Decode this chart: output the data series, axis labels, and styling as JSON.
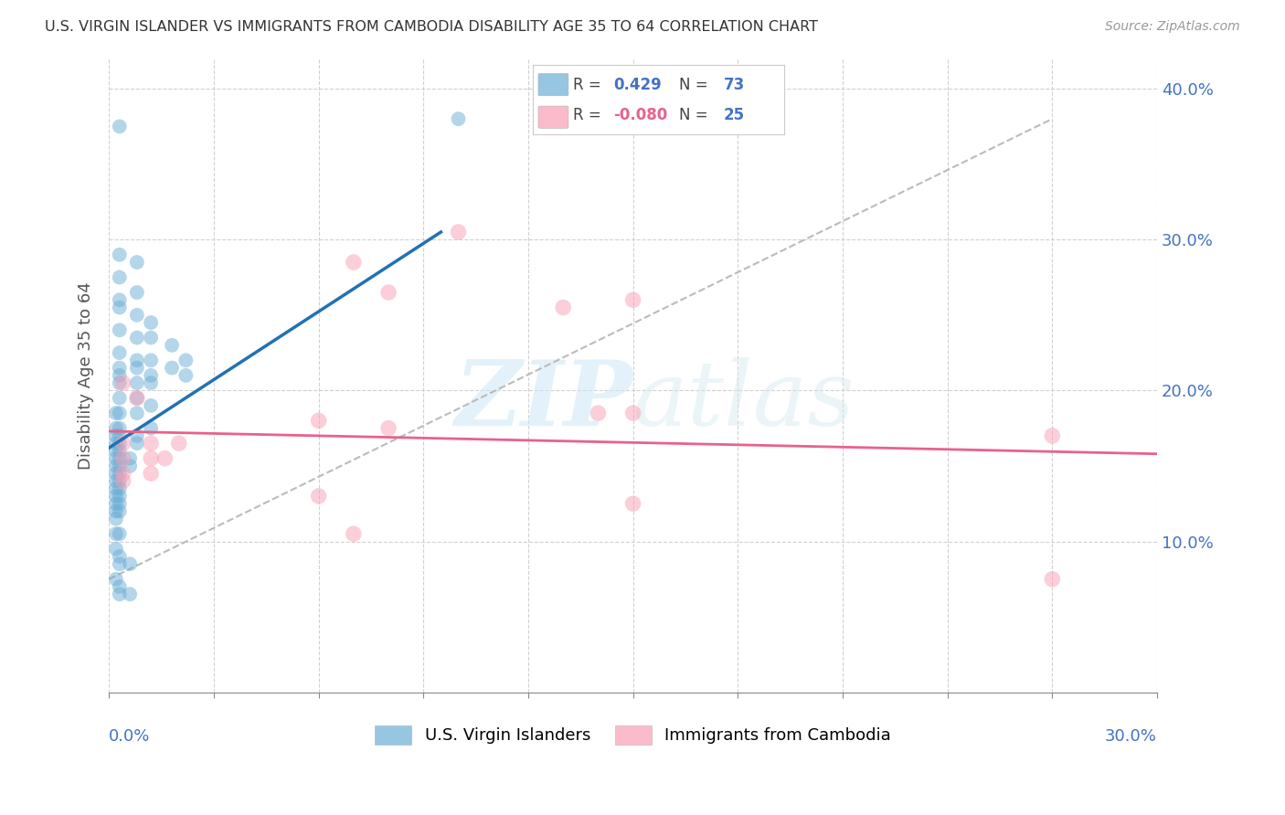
{
  "title": "U.S. VIRGIN ISLANDER VS IMMIGRANTS FROM CAMBODIA DISABILITY AGE 35 TO 64 CORRELATION CHART",
  "source": "Source: ZipAtlas.com",
  "ylabel": "Disability Age 35 to 64",
  "xlim": [
    0.0,
    0.3
  ],
  "ylim": [
    0.0,
    0.42
  ],
  "blue_color": "#6baed6",
  "pink_color": "#fa9fb5",
  "blue_line_color": "#2171b5",
  "pink_line_color": "#e8628a",
  "dashed_line_color": "#bbbbbb",
  "blue_scatter": [
    [
      0.003,
      0.375
    ],
    [
      0.003,
      0.29
    ],
    [
      0.008,
      0.285
    ],
    [
      0.003,
      0.275
    ],
    [
      0.008,
      0.265
    ],
    [
      0.003,
      0.26
    ],
    [
      0.003,
      0.255
    ],
    [
      0.008,
      0.25
    ],
    [
      0.012,
      0.245
    ],
    [
      0.003,
      0.24
    ],
    [
      0.008,
      0.235
    ],
    [
      0.012,
      0.235
    ],
    [
      0.018,
      0.23
    ],
    [
      0.003,
      0.225
    ],
    [
      0.008,
      0.22
    ],
    [
      0.012,
      0.22
    ],
    [
      0.022,
      0.22
    ],
    [
      0.003,
      0.215
    ],
    [
      0.008,
      0.215
    ],
    [
      0.018,
      0.215
    ],
    [
      0.003,
      0.21
    ],
    [
      0.012,
      0.21
    ],
    [
      0.022,
      0.21
    ],
    [
      0.003,
      0.205
    ],
    [
      0.008,
      0.205
    ],
    [
      0.012,
      0.205
    ],
    [
      0.003,
      0.195
    ],
    [
      0.008,
      0.195
    ],
    [
      0.012,
      0.19
    ],
    [
      0.002,
      0.185
    ],
    [
      0.003,
      0.185
    ],
    [
      0.008,
      0.185
    ],
    [
      0.002,
      0.175
    ],
    [
      0.003,
      0.175
    ],
    [
      0.012,
      0.175
    ],
    [
      0.002,
      0.17
    ],
    [
      0.003,
      0.17
    ],
    [
      0.008,
      0.17
    ],
    [
      0.002,
      0.165
    ],
    [
      0.003,
      0.165
    ],
    [
      0.008,
      0.165
    ],
    [
      0.002,
      0.16
    ],
    [
      0.003,
      0.16
    ],
    [
      0.002,
      0.155
    ],
    [
      0.003,
      0.155
    ],
    [
      0.006,
      0.155
    ],
    [
      0.002,
      0.15
    ],
    [
      0.003,
      0.15
    ],
    [
      0.006,
      0.15
    ],
    [
      0.002,
      0.145
    ],
    [
      0.003,
      0.145
    ],
    [
      0.002,
      0.14
    ],
    [
      0.003,
      0.14
    ],
    [
      0.002,
      0.135
    ],
    [
      0.003,
      0.135
    ],
    [
      0.002,
      0.13
    ],
    [
      0.003,
      0.13
    ],
    [
      0.002,
      0.125
    ],
    [
      0.003,
      0.125
    ],
    [
      0.002,
      0.12
    ],
    [
      0.003,
      0.12
    ],
    [
      0.002,
      0.115
    ],
    [
      0.002,
      0.105
    ],
    [
      0.003,
      0.105
    ],
    [
      0.002,
      0.095
    ],
    [
      0.003,
      0.09
    ],
    [
      0.003,
      0.085
    ],
    [
      0.006,
      0.085
    ],
    [
      0.002,
      0.075
    ],
    [
      0.003,
      0.07
    ],
    [
      0.003,
      0.065
    ],
    [
      0.006,
      0.065
    ],
    [
      0.1,
      0.38
    ]
  ],
  "pink_scatter": [
    [
      0.1,
      0.305
    ],
    [
      0.07,
      0.285
    ],
    [
      0.08,
      0.265
    ],
    [
      0.15,
      0.26
    ],
    [
      0.13,
      0.255
    ],
    [
      0.004,
      0.205
    ],
    [
      0.008,
      0.195
    ],
    [
      0.14,
      0.185
    ],
    [
      0.15,
      0.185
    ],
    [
      0.06,
      0.18
    ],
    [
      0.08,
      0.175
    ],
    [
      0.004,
      0.165
    ],
    [
      0.012,
      0.165
    ],
    [
      0.02,
      0.165
    ],
    [
      0.004,
      0.155
    ],
    [
      0.016,
      0.155
    ],
    [
      0.012,
      0.155
    ],
    [
      0.004,
      0.145
    ],
    [
      0.012,
      0.145
    ],
    [
      0.004,
      0.14
    ],
    [
      0.06,
      0.13
    ],
    [
      0.15,
      0.125
    ],
    [
      0.27,
      0.17
    ],
    [
      0.07,
      0.105
    ],
    [
      0.27,
      0.075
    ]
  ],
  "blue_line_x": [
    0.0,
    0.095
  ],
  "blue_line_y": [
    0.162,
    0.305
  ],
  "dashed_line_x": [
    0.0,
    0.27
  ],
  "dashed_line_y": [
    0.075,
    0.38
  ],
  "pink_line_x": [
    0.0,
    0.3
  ],
  "pink_line_y": [
    0.173,
    0.158
  ],
  "watermark_zip": "ZIP",
  "watermark_atlas": "atlas",
  "background_color": "#ffffff"
}
